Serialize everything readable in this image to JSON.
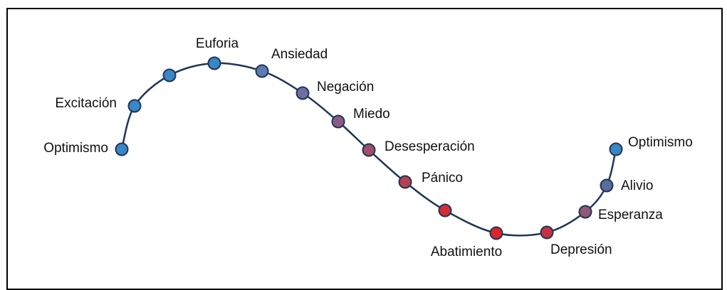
{
  "nodes": [
    {
      "label": "Optimismo"
    },
    {
      "label": "Excitación"
    },
    {
      "label": null
    },
    {
      "label": "Euforia"
    },
    {
      "label": "Ansiedad"
    },
    {
      "label": "Negación"
    },
    {
      "label": "Miedo"
    },
    {
      "label": "Desesperación"
    },
    {
      "label": "Pánico"
    },
    {
      "label": null
    },
    {
      "label": "Abatimiento"
    },
    {
      "label": "Depresión"
    },
    {
      "label": "Esperanza"
    },
    {
      "label": "Alivio"
    },
    {
      "label": "Optimismo"
    }
  ]
}
